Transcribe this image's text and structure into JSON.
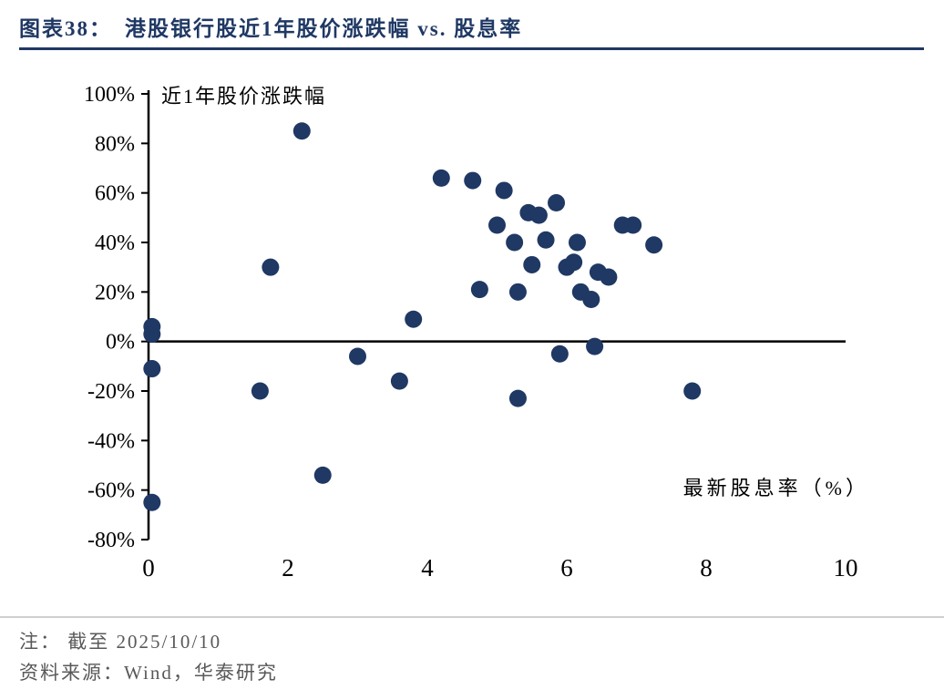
{
  "header": {
    "figure_label": "图表38：",
    "figure_title": "港股银行股近1年股价涨跌幅 vs. 股息率"
  },
  "footer": {
    "note": "注： 截至 2025/10/10",
    "source": "资料来源：Wind，华泰研究"
  },
  "chart_data": {
    "type": "scatter",
    "title": "港股银行股近1年股价涨跌幅 vs. 股息率",
    "y_axis_label": "近1年股价涨跌幅",
    "x_axis_label": "最新股息率（%）",
    "xlim": [
      0,
      10
    ],
    "ylim": [
      -80,
      100
    ],
    "x_ticks": [
      0,
      2,
      4,
      6,
      8,
      10
    ],
    "y_ticks": [
      100,
      80,
      60,
      40,
      20,
      0,
      -20,
      -40,
      -60,
      -80
    ],
    "y_tick_suffix": "%",
    "grid": false,
    "legend": "none",
    "point_color": "#1f3864",
    "axis_color": "#000000",
    "points": [
      {
        "x": 0.05,
        "y": 6
      },
      {
        "x": 0.05,
        "y": 3
      },
      {
        "x": 0.05,
        "y": -11
      },
      {
        "x": 0.05,
        "y": -65
      },
      {
        "x": 1.6,
        "y": -20
      },
      {
        "x": 1.75,
        "y": 30
      },
      {
        "x": 2.2,
        "y": 85
      },
      {
        "x": 2.5,
        "y": -54
      },
      {
        "x": 3.0,
        "y": -6
      },
      {
        "x": 3.6,
        "y": -16
      },
      {
        "x": 3.8,
        "y": 9
      },
      {
        "x": 4.2,
        "y": 66
      },
      {
        "x": 4.65,
        "y": 65
      },
      {
        "x": 4.75,
        "y": 21
      },
      {
        "x": 5.0,
        "y": 47
      },
      {
        "x": 5.1,
        "y": 61
      },
      {
        "x": 5.25,
        "y": 40
      },
      {
        "x": 5.3,
        "y": 20
      },
      {
        "x": 5.3,
        "y": -23
      },
      {
        "x": 5.45,
        "y": 52
      },
      {
        "x": 5.5,
        "y": 31
      },
      {
        "x": 5.6,
        "y": 51
      },
      {
        "x": 5.7,
        "y": 41
      },
      {
        "x": 5.85,
        "y": 56
      },
      {
        "x": 5.9,
        "y": -5
      },
      {
        "x": 6.0,
        "y": 30
      },
      {
        "x": 6.1,
        "y": 32
      },
      {
        "x": 6.15,
        "y": 40
      },
      {
        "x": 6.2,
        "y": 20
      },
      {
        "x": 6.35,
        "y": 17
      },
      {
        "x": 6.4,
        "y": -2
      },
      {
        "x": 6.45,
        "y": 28
      },
      {
        "x": 6.6,
        "y": 26
      },
      {
        "x": 6.8,
        "y": 47
      },
      {
        "x": 6.95,
        "y": 47
      },
      {
        "x": 7.25,
        "y": 39
      },
      {
        "x": 7.8,
        "y": -20
      }
    ]
  }
}
